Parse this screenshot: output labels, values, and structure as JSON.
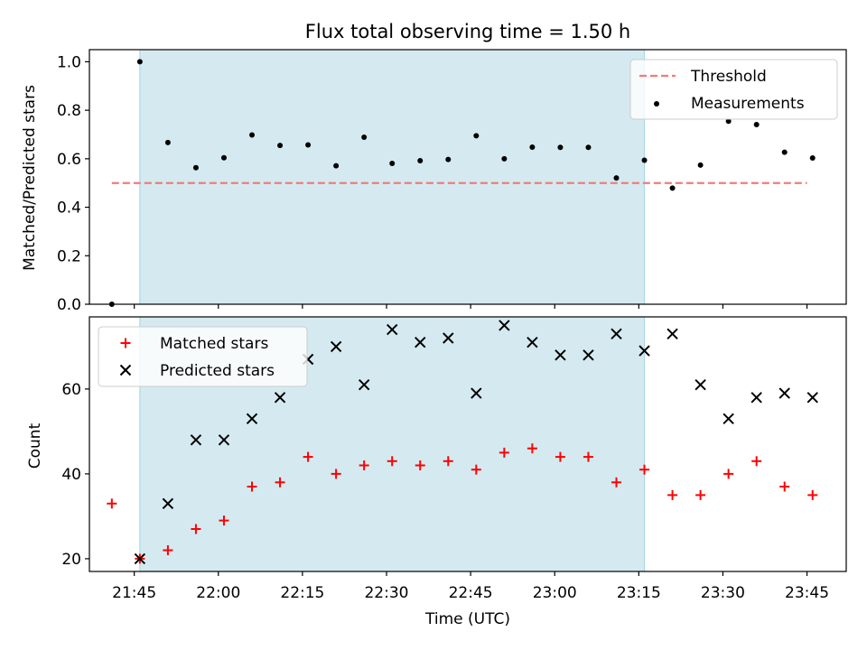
{
  "figure": {
    "title": "Flux total observing time = 1.50 h"
  },
  "chart_data": [
    {
      "type": "scatter",
      "panel": "top",
      "ylabel": "Matched/Predicted stars",
      "xlabel": "",
      "xlim": [
        "21:37",
        "23:52"
      ],
      "ylim": [
        0,
        1.05
      ],
      "yticks": [
        0.0,
        0.2,
        0.4,
        0.6,
        0.8,
        1.0
      ],
      "ytick_labels": [
        "0.0",
        "0.2",
        "0.4",
        "0.6",
        "0.8",
        "1.0"
      ],
      "shaded_interval": [
        "21:46",
        "23:16"
      ],
      "shade_color": "#d4eaf0",
      "grid": false,
      "legend_position": "upper right",
      "threshold": {
        "name": "Threshold",
        "value": 0.5,
        "x_from": "21:41",
        "x_to": "23:45",
        "color": "#f47a7a",
        "style": "dashed"
      },
      "series": [
        {
          "name": "Measurements",
          "marker": "dot",
          "color": "#000000",
          "x": [
            "21:41",
            "21:46",
            "21:51",
            "21:56",
            "22:01",
            "22:06",
            "22:11",
            "22:16",
            "22:21",
            "22:26",
            "22:31",
            "22:36",
            "22:41",
            "22:46",
            "22:51",
            "22:56",
            "23:01",
            "23:06",
            "23:11",
            "23:16",
            "23:21",
            "23:26",
            "23:31",
            "23:36",
            "23:41",
            "23:46"
          ],
          "y": [
            0.0,
            1.0,
            0.667,
            0.563,
            0.604,
            0.698,
            0.655,
            0.657,
            0.571,
            0.689,
            0.581,
            0.592,
            0.597,
            0.695,
            0.6,
            0.648,
            0.647,
            0.647,
            0.521,
            0.594,
            0.479,
            0.574,
            0.755,
            0.741,
            0.627,
            0.603
          ]
        }
      ]
    },
    {
      "type": "scatter",
      "panel": "bottom",
      "xlabel": "Time (UTC)",
      "ylabel": "Count",
      "xlim": [
        "21:37",
        "23:52"
      ],
      "ylim": [
        17,
        77
      ],
      "xticks": [
        "21:45",
        "22:00",
        "22:15",
        "22:30",
        "22:45",
        "23:00",
        "23:15",
        "23:30",
        "23:45"
      ],
      "yticks": [
        20,
        40,
        60
      ],
      "shaded_interval": [
        "21:46",
        "23:16"
      ],
      "shade_color": "#d4eaf0",
      "grid": false,
      "legend_position": "upper left",
      "series": [
        {
          "name": "Matched stars",
          "marker": "plus",
          "color": "#ff0000",
          "x": [
            "21:41",
            "21:46",
            "21:51",
            "21:56",
            "22:01",
            "22:06",
            "22:11",
            "22:16",
            "22:21",
            "22:26",
            "22:31",
            "22:36",
            "22:41",
            "22:46",
            "22:51",
            "22:56",
            "23:01",
            "23:06",
            "23:11",
            "23:16",
            "23:21",
            "23:26",
            "23:31",
            "23:36",
            "23:41",
            "23:46"
          ],
          "y": [
            33,
            20,
            22,
            27,
            29,
            37,
            38,
            44,
            40,
            42,
            43,
            42,
            43,
            41,
            45,
            46,
            44,
            44,
            38,
            41,
            35,
            35,
            40,
            43,
            37,
            35
          ]
        },
        {
          "name": "Predicted stars",
          "marker": "x",
          "color": "#000000",
          "x": [
            "21:46",
            "21:51",
            "21:56",
            "22:01",
            "22:06",
            "22:11",
            "22:16",
            "22:21",
            "22:26",
            "22:31",
            "22:36",
            "22:41",
            "22:46",
            "22:51",
            "22:56",
            "23:01",
            "23:06",
            "23:11",
            "23:16",
            "23:21",
            "23:26",
            "23:31",
            "23:36",
            "23:41",
            "23:46"
          ],
          "y": [
            20,
            33,
            48,
            48,
            53,
            58,
            67,
            70,
            61,
            74,
            71,
            72,
            59,
            75,
            71,
            68,
            68,
            73,
            69,
            73,
            61,
            53,
            58,
            59,
            58
          ]
        }
      ]
    }
  ]
}
